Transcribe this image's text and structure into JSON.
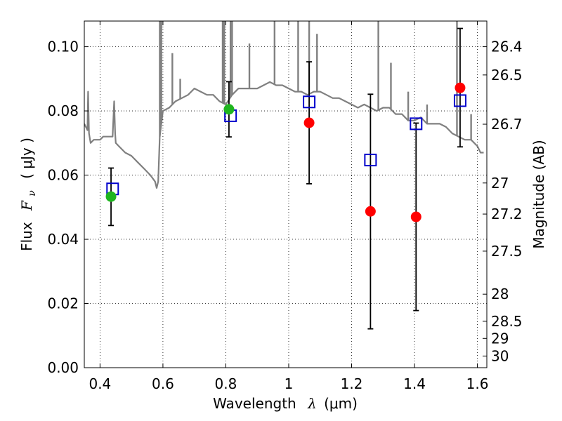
{
  "chart_data": {
    "type": "scatter",
    "xlabel_text": "Wavelength",
    "xlabel_symbol": "λ",
    "xlabel_unit": "(μm)",
    "ylabel_text": "Flux",
    "ylabel_symbol": "F",
    "ylabel_subscript": "ν",
    "ylabel_unit": "( μJy )",
    "ylabel_right": "Magnitude (AB)",
    "xlim": [
      0.35,
      1.63
    ],
    "ylim": [
      0.0,
      0.108
    ],
    "x_ticks": [
      0.4,
      0.6,
      0.8,
      1.0,
      1.2,
      1.4,
      1.6
    ],
    "x_tick_labels": [
      "0.4",
      "0.6",
      "0.8",
      "1",
      "1.2",
      "1.4",
      "1.6"
    ],
    "y_ticks": [
      0.0,
      0.02,
      0.04,
      0.06,
      0.08,
      0.1
    ],
    "y_tick_labels": [
      "0.00",
      "0.02",
      "0.04",
      "0.06",
      "0.08",
      "0.10"
    ],
    "mag_ticks": [
      26.4,
      26.5,
      26.7,
      27,
      27.2,
      27.5,
      28,
      28.5,
      29,
      30
    ],
    "mag_tick_labels": [
      "26.4",
      "26.5",
      "26.7",
      "27",
      "27.2",
      "27.5",
      "28",
      "28.5",
      "29",
      "30"
    ],
    "grid": true,
    "colors": {
      "model": "#808080",
      "green_points": "#1fb51f",
      "red_points": "#ff0000",
      "squares": "#0000cc",
      "errorbar": "#000000"
    },
    "model_spectrum": {
      "name": "",
      "x": [
        0.35,
        0.36,
        0.362,
        0.365,
        0.37,
        0.38,
        0.39,
        0.4,
        0.41,
        0.42,
        0.43,
        0.44,
        0.445,
        0.448,
        0.45,
        0.46,
        0.48,
        0.5,
        0.52,
        0.54,
        0.56,
        0.575,
        0.58,
        0.585,
        0.59,
        0.6,
        0.62,
        0.64,
        0.66,
        0.68,
        0.7,
        0.72,
        0.74,
        0.76,
        0.78,
        0.8,
        0.82,
        0.84,
        0.86,
        0.88,
        0.9,
        0.92,
        0.94,
        0.96,
        0.98,
        1.0,
        1.02,
        1.04,
        1.06,
        1.08,
        1.1,
        1.12,
        1.14,
        1.16,
        1.18,
        1.2,
        1.22,
        1.24,
        1.26,
        1.28,
        1.3,
        1.32,
        1.34,
        1.36,
        1.38,
        1.4,
        1.42,
        1.44,
        1.46,
        1.48,
        1.5,
        1.52,
        1.54,
        1.56,
        1.58,
        1.6,
        1.61,
        1.62
      ],
      "y": [
        0.076,
        0.074,
        0.086,
        0.073,
        0.07,
        0.071,
        0.071,
        0.071,
        0.072,
        0.072,
        0.072,
        0.072,
        0.083,
        0.073,
        0.07,
        0.069,
        0.067,
        0.066,
        0.064,
        0.062,
        0.06,
        0.058,
        0.056,
        0.058,
        0.072,
        0.08,
        0.081,
        0.083,
        0.084,
        0.085,
        0.087,
        0.086,
        0.085,
        0.085,
        0.083,
        0.082,
        0.085,
        0.087,
        0.087,
        0.087,
        0.087,
        0.088,
        0.089,
        0.088,
        0.088,
        0.087,
        0.086,
        0.086,
        0.085,
        0.086,
        0.086,
        0.085,
        0.084,
        0.084,
        0.083,
        0.082,
        0.081,
        0.082,
        0.081,
        0.08,
        0.081,
        0.081,
        0.079,
        0.079,
        0.077,
        0.077,
        0.078,
        0.076,
        0.076,
        0.076,
        0.075,
        0.073,
        0.072,
        0.071,
        0.071,
        0.069,
        0.067,
        0.067
      ]
    },
    "emission_spikes": [
      {
        "x": 0.59,
        "y": 0.108
      },
      {
        "x": 0.595,
        "y": 0.108
      },
      {
        "x": 0.63,
        "y": 0.098
      },
      {
        "x": 0.655,
        "y": 0.09
      },
      {
        "x": 0.79,
        "y": 0.108
      },
      {
        "x": 0.795,
        "y": 0.108
      },
      {
        "x": 0.815,
        "y": 0.108
      },
      {
        "x": 0.82,
        "y": 0.108
      },
      {
        "x": 0.875,
        "y": 0.101
      },
      {
        "x": 0.955,
        "y": 0.108
      },
      {
        "x": 1.03,
        "y": 0.108
      },
      {
        "x": 1.065,
        "y": 0.108
      },
      {
        "x": 1.09,
        "y": 0.104
      },
      {
        "x": 1.285,
        "y": 0.108
      },
      {
        "x": 1.325,
        "y": 0.095
      },
      {
        "x": 1.38,
        "y": 0.086
      },
      {
        "x": 1.44,
        "y": 0.082
      },
      {
        "x": 1.535,
        "y": 0.108
      },
      {
        "x": 1.58,
        "y": 0.079
      }
    ],
    "square_points": [
      {
        "x": 0.44,
        "y": 0.0557
      },
      {
        "x": 0.815,
        "y": 0.0785
      },
      {
        "x": 1.065,
        "y": 0.0828
      },
      {
        "x": 1.26,
        "y": 0.0647
      },
      {
        "x": 1.405,
        "y": 0.076
      },
      {
        "x": 1.545,
        "y": 0.0832
      }
    ],
    "green_points": [
      {
        "x": 0.435,
        "y": 0.0533
      },
      {
        "x": 0.81,
        "y": 0.0805
      }
    ],
    "red_points": [
      {
        "x": 1.065,
        "y": 0.0763
      },
      {
        "x": 1.26,
        "y": 0.0487
      },
      {
        "x": 1.405,
        "y": 0.047
      },
      {
        "x": 1.545,
        "y": 0.0872
      }
    ],
    "error_bars": [
      {
        "x": 0.435,
        "low": 0.0443,
        "high": 0.0622
      },
      {
        "x": 0.81,
        "low": 0.0719,
        "high": 0.0891
      },
      {
        "x": 1.065,
        "low": 0.0573,
        "high": 0.0953
      },
      {
        "x": 1.26,
        "low": 0.0121,
        "high": 0.0852
      },
      {
        "x": 1.405,
        "low": 0.0178,
        "high": 0.0762
      },
      {
        "x": 1.545,
        "low": 0.0688,
        "high": 0.1057
      }
    ]
  }
}
